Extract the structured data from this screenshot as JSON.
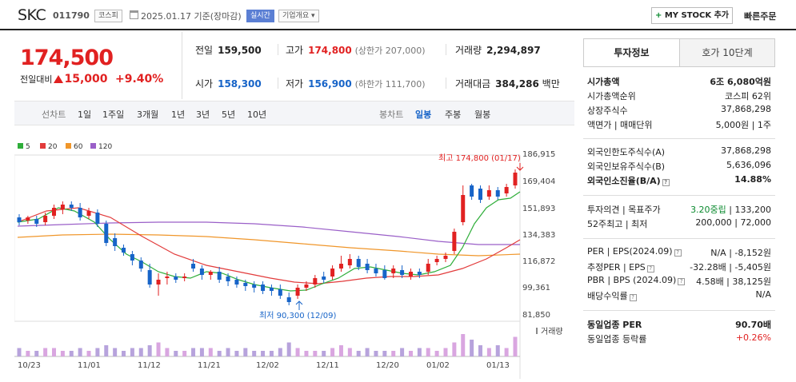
{
  "header": {
    "name": "SKC",
    "code": "011790",
    "market_badge": "코스피",
    "date_text": "2025.01.17 기준(장마감)",
    "realtime_badge": "실시간",
    "company_badge": "기업개요 ▾",
    "my_stock_label": "MY STOCK 추가",
    "quick_order": "빠른주문"
  },
  "price": {
    "current": "174,500",
    "change_label": "전일대비",
    "change_value": "15,000",
    "change_pct": "+9.40%"
  },
  "stats": {
    "prev_label": "전일",
    "prev": "159,500",
    "high_label": "고가",
    "high": "174,800",
    "high_sub": "(상한가 207,000)",
    "volume_label": "거래량",
    "volume": "2,294,897",
    "open_label": "시가",
    "open": "158,300",
    "low_label": "저가",
    "low": "156,900",
    "low_sub": "(하한가 111,700)",
    "amount_label": "거래대금",
    "amount": "384,286",
    "amount_unit": "백만"
  },
  "chart_toolbar": {
    "line_label": "선차트",
    "line_periods": [
      "1일",
      "1주일",
      "3개월",
      "1년",
      "3년",
      "5년",
      "10년"
    ],
    "candle_label": "봉차트",
    "candle_periods": [
      "일봉",
      "주봉",
      "월봉"
    ],
    "active_candle": "일봉"
  },
  "legend": [
    {
      "label": "5",
      "color": "#2fae3a"
    },
    {
      "label": "20",
      "color": "#e23b3b"
    },
    {
      "label": "60",
      "color": "#f0962a"
    },
    {
      "label": "120",
      "color": "#9a5fc8"
    }
  ],
  "chart_data": {
    "type": "candlestick",
    "y_ticks": [
      "186,915",
      "169,404",
      "151,893",
      "134,383",
      "116,872",
      "99,361",
      "81,850"
    ],
    "ylim": [
      81850,
      186915
    ],
    "x_ticks": [
      "10/23",
      "11/01",
      "11/12",
      "11/21",
      "12/02",
      "12/11",
      "12/20",
      "01/02",
      "01/13"
    ],
    "annotation_high": "최고 174,800 (01/17)",
    "annotation_low": "최저 90,300 (12/09)",
    "volume_label": "거래량",
    "up_color": "#e12121",
    "down_color": "#1764c8"
  },
  "right_panel": {
    "tab_active": "투자정보",
    "tab_other": "호가 10단계",
    "market_cap_label": "시가총액",
    "market_cap": "6조 6,080억원",
    "cap_rank_label": "시가총액순위",
    "cap_rank": "코스피 62위",
    "shares_label": "상장주식수",
    "shares": "37,868,298",
    "face_label": "액면가 | 매매단위",
    "face": "5,000원 | 1주",
    "foreign_limit_label": "외국인한도주식수(A)",
    "foreign_limit": "37,868,298",
    "foreign_hold_label": "외국인보유주식수(B)",
    "foreign_hold": "5,636,096",
    "foreign_ratio_label": "외국인소진율(B/A)",
    "foreign_ratio": "14.88%",
    "opinion_label": "투자의견 | 목표주가",
    "opinion": "3.20중립",
    "target": "133,200",
    "week52_label": "52주최고 | 최저",
    "week52": "200,000 | 72,000",
    "per_label": "PER | EPS(2024.09)",
    "per": "N/A | -8,152원",
    "est_label": "추정PER | EPS",
    "est": "-32.28배 | -5,405원",
    "pbr_label": "PBR | BPS (2024.09)",
    "pbr": "4.58배 | 38,125원",
    "div_label": "배당수익률",
    "div": "N/A",
    "sector_per_label": "동일업종 PER",
    "sector_per": "90.70배",
    "sector_chg_label": "동일업종 등락률",
    "sector_chg": "+0.26%"
  }
}
